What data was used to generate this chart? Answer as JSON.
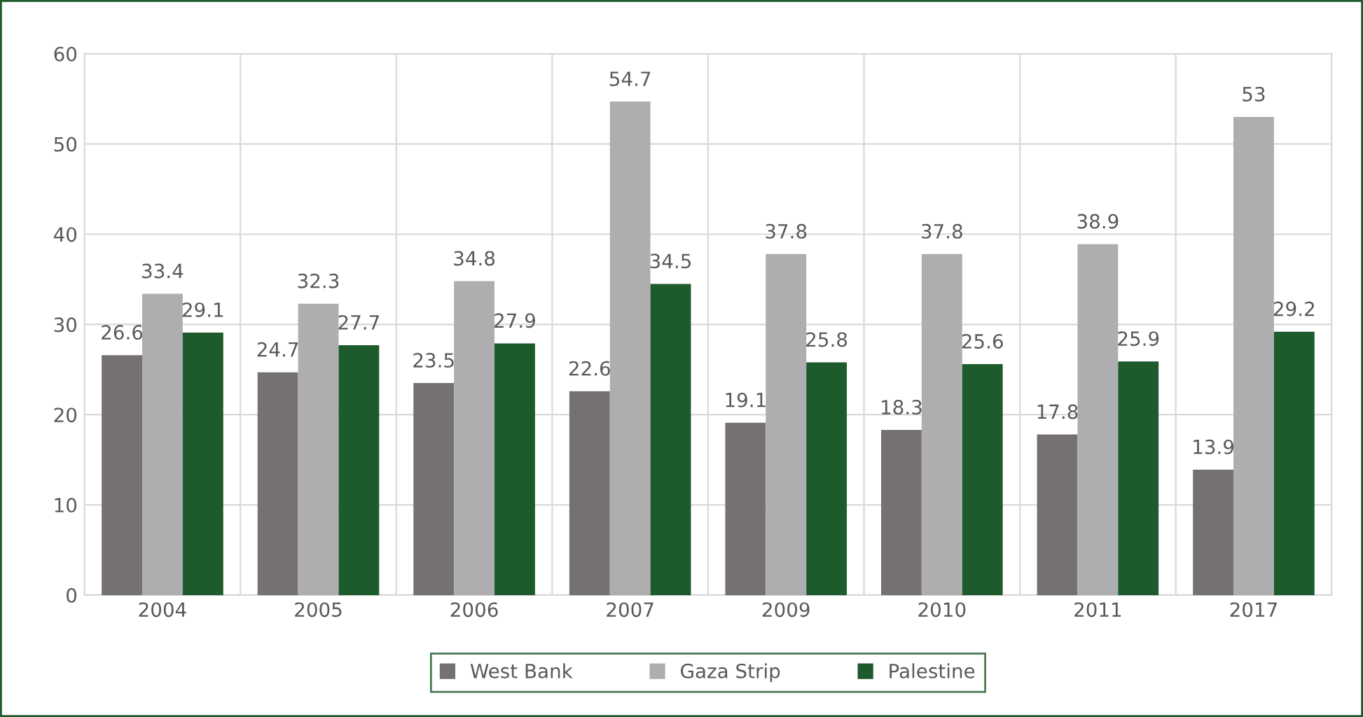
{
  "chart_data": {
    "type": "bar",
    "categories": [
      "2004",
      "2005",
      "2006",
      "2007",
      "2009",
      "2010",
      "2011",
      "2017"
    ],
    "series": [
      {
        "name": "West Bank",
        "color": "#767171",
        "values": [
          26.6,
          24.7,
          23.5,
          22.6,
          19.1,
          18.3,
          17.8,
          13.9
        ]
      },
      {
        "name": "Gaza Strip",
        "color": "#aeaeb0",
        "values": [
          33.4,
          32.3,
          34.8,
          54.7,
          37.8,
          37.8,
          38.9,
          53
        ]
      },
      {
        "name": "Palestine",
        "color": "#1d5a2c",
        "values": [
          29.1,
          27.7,
          27.9,
          34.5,
          25.8,
          25.6,
          25.9,
          29.2
        ]
      }
    ],
    "ylim": [
      0,
      60
    ],
    "yticks": [
      0,
      10,
      20,
      30,
      40,
      50,
      60
    ],
    "grid": true,
    "legend": "bottom",
    "data_labels": true
  }
}
